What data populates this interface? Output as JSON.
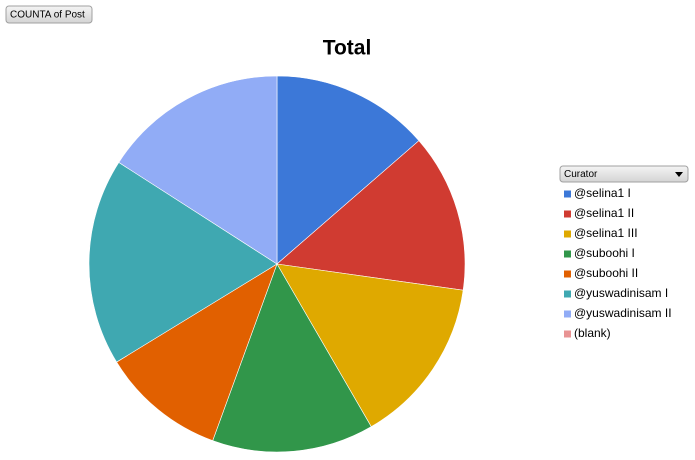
{
  "chart_data": {
    "type": "pie",
    "title": "Total",
    "field_button": "COUNTA of Post",
    "legend_title": "Curator",
    "categories": [
      "@selina1 I",
      "@selina1 II",
      "@selina1 III",
      "@suboohi I",
      "@suboohi II",
      "@yuswadinisam I",
      "@yuswadinisam II",
      "(blank)"
    ],
    "values": [
      13.6,
      13.6,
      14.4,
      13.9,
      10.7,
      17.8,
      15.9,
      0
    ],
    "colors": [
      "#3c78d8",
      "#d03b31",
      "#dfa900",
      "#31964a",
      "#e16000",
      "#3fa8b1",
      "#91acf6",
      "#e89393"
    ],
    "legend": "right"
  }
}
